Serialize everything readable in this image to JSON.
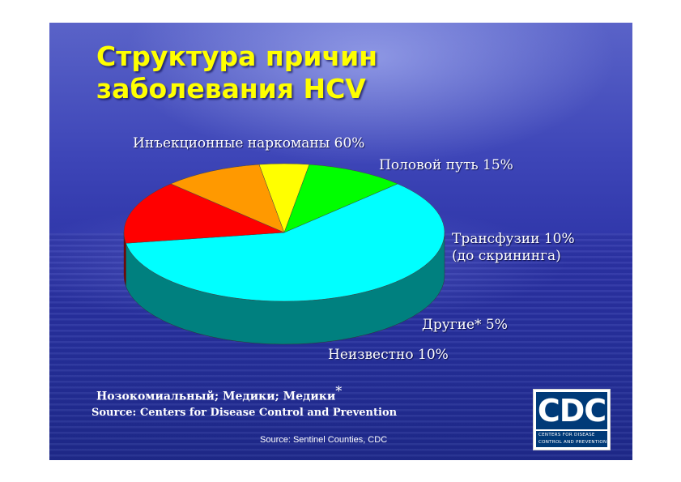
{
  "slide": {
    "title_lines": [
      "Структура причин",
      "заболевания HCV"
    ],
    "footnote": "Нозокомиальный; Медики; Медики",
    "footnote_mark": "*",
    "source1": "Source: Centers for Disease Control and Prevention",
    "source2": "Source: Sentinel Counties, CDC",
    "background_color": "#2f38a8"
  },
  "logo": {
    "name": "CDC",
    "line1": "CENTERS FOR DISEASE",
    "line2": "CONTROL AND PREVENTION",
    "color": "#003a78"
  },
  "chart_data": {
    "type": "pie",
    "style": "3d",
    "slices": [
      {
        "label_lines": [
          "Инъекционные наркоманы 60%"
        ],
        "value": 60,
        "color": "#00ffff",
        "side_color": "#00807f"
      },
      {
        "label_lines": [
          "Половой путь 15%"
        ],
        "value": 15,
        "color": "#ff0000",
        "side_color": "#800000"
      },
      {
        "label_lines": [
          "Трансфузии 10%",
          "(до скрининга)"
        ],
        "value": 10,
        "color": "#ff9900",
        "side_color": "#995c00"
      },
      {
        "label_lines": [
          "Другие* 5%"
        ],
        "value": 5,
        "color": "#ffff00",
        "side_color": "#808000"
      },
      {
        "label_lines": [
          "Неизвестно 10%"
        ],
        "value": 10,
        "color": "#00ff00",
        "side_color": "#008000"
      }
    ]
  }
}
